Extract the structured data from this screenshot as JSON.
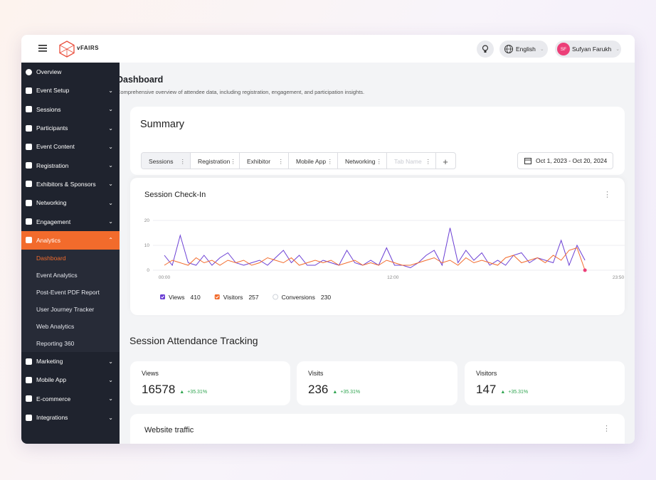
{
  "topbar": {
    "brand": "vFAIRS",
    "language": "English",
    "avatar_initials": "SF",
    "user_name": "Sufyan Farukh"
  },
  "sidebar": {
    "items": [
      "Overview",
      "Event Setup",
      "Sessions",
      "Participants",
      "Event Content",
      "Registration",
      "Exhibitors & Sponsors",
      "Networking",
      "Engagement",
      "Analytics",
      "Marketing",
      "Mobile App",
      "E-commerce",
      "Integrations"
    ],
    "active_item": "Analytics",
    "subitems": [
      "Dashboard",
      "Event Analytics",
      "Post-Event PDF Report",
      "User Journey Tracker",
      "Web Analytics",
      "Reporting 360"
    ]
  },
  "header": {
    "title": "Dashboard",
    "subtitle": "Comprehensive overview of attendee data, including registration, engagement, and participation insights."
  },
  "summary": {
    "title": "Summary",
    "tabs": [
      "Sessions",
      "Registration",
      "Exhibitor",
      "Mobile App",
      "Networking"
    ],
    "tab_placeholder": "Tab Name",
    "date_range": "Oct 1, 2023 - Oct 20, 2024"
  },
  "chart_data": {
    "type": "line",
    "title": "Session Check-In",
    "x": [
      0,
      25,
      50,
      75,
      100,
      125,
      150,
      175,
      200,
      225,
      250,
      275,
      300,
      325,
      350,
      375,
      400,
      425,
      450,
      475,
      500,
      525,
      550,
      575,
      600,
      625,
      650,
      675,
      700,
      725,
      750,
      775,
      800,
      825,
      850,
      875,
      900,
      925,
      950,
      975,
      1000,
      1025,
      1050,
      1075,
      1100,
      1125,
      1150,
      1175,
      1200,
      1225,
      1250,
      1275,
      1300,
      1325
    ],
    "xlim": [
      0,
      1430
    ],
    "xticks": [
      {
        "value": 0,
        "label": "00:00"
      },
      {
        "value": 720,
        "label": "12:00"
      },
      {
        "value": 1430,
        "label": "23:50"
      }
    ],
    "ylim": [
      0,
      20
    ],
    "yticks": [
      0,
      10,
      20
    ],
    "grid": true,
    "series": [
      {
        "name": "Views",
        "color": "#6b3fd4",
        "total": 410,
        "visible": true,
        "values": [
          6,
          2,
          14,
          3,
          2,
          6,
          2,
          5,
          7,
          3,
          2,
          3,
          4,
          2,
          5,
          8,
          3,
          6,
          2,
          2,
          4,
          3,
          2,
          8,
          3,
          2,
          4,
          2,
          9,
          2,
          2,
          1,
          3,
          6,
          8,
          2,
          17,
          3,
          8,
          4,
          7,
          2,
          4,
          2,
          6,
          7,
          3,
          5,
          4,
          3,
          12,
          2,
          10,
          4
        ]
      },
      {
        "name": "Visitors",
        "color": "#f26b2c",
        "total": 257,
        "visible": true,
        "values": [
          2,
          4,
          3,
          2,
          5,
          3,
          4,
          2,
          4,
          3,
          4,
          2,
          3,
          5,
          4,
          3,
          5,
          2,
          3,
          4,
          3,
          4,
          2,
          3,
          4,
          2,
          3,
          2,
          4,
          3,
          2,
          2,
          3,
          4,
          5,
          3,
          4,
          2,
          5,
          3,
          4,
          3,
          2,
          5,
          6,
          3,
          4,
          5,
          3,
          6,
          4,
          8,
          9,
          0
        ]
      },
      {
        "name": "Conversions",
        "color": "#cfd3da",
        "total": 230,
        "visible": false
      }
    ]
  },
  "attendance": {
    "title": "Session Attendance Tracking",
    "cards": [
      {
        "label": "Views",
        "value": 16578,
        "change": "+35.31%"
      },
      {
        "label": "Visits",
        "value": 236,
        "change": "+35.31%"
      },
      {
        "label": "Visitors",
        "value": 147,
        "change": "+35.31%"
      }
    ]
  },
  "traffic": {
    "title": "Website traffic"
  }
}
